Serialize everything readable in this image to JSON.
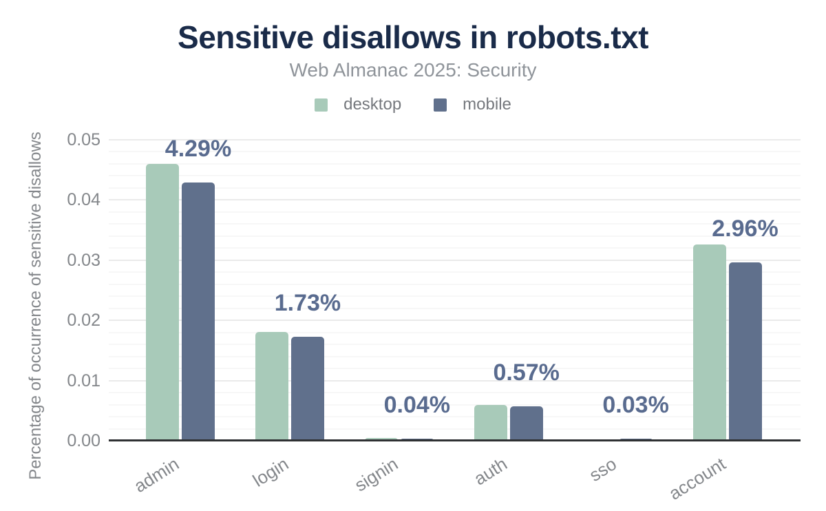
{
  "header": {
    "title": "Sensitive disallows in robots.txt",
    "subtitle": "Web Almanac 2025: Security"
  },
  "chart_data": {
    "type": "bar",
    "title": "Sensitive disallows in robots.txt",
    "subtitle": "Web Almanac 2025: Security",
    "categories": [
      "admin",
      "login",
      "signin",
      "auth",
      "sso",
      "account"
    ],
    "series": [
      {
        "name": "desktop",
        "color": "#a8cab9",
        "values": [
          0.046,
          0.0181,
          0.0005,
          0.0059,
          0.0002,
          0.0326
        ]
      },
      {
        "name": "mobile",
        "color": "#60708c",
        "values": [
          0.0429,
          0.0173,
          0.0004,
          0.0057,
          0.0003,
          0.0296
        ]
      }
    ],
    "data_labels": [
      "4.29%",
      "1.73%",
      "0.04%",
      "0.57%",
      "0.03%",
      "2.96%"
    ],
    "data_labels_refer_to": "mobile",
    "xlabel": "",
    "ylabel": "Percentage of occurrence of sensitive disallows",
    "ylim": [
      0,
      0.05
    ],
    "yticks": [
      "0.00",
      "0.01",
      "0.02",
      "0.03",
      "0.04",
      "0.05"
    ],
    "grid": {
      "major_step": 0.01,
      "minor_step": 0.002,
      "orientation": "horizontal"
    },
    "legend_position": "top"
  },
  "colors": {
    "title": "#1a2b49",
    "subtitle": "#8f949a",
    "axis_text": "#84878b",
    "data_label": "#596b8f",
    "axis_line": "#2f3133",
    "grid_major": "#eaeaea",
    "grid_minor": "#f7f7f7",
    "desktop_bar": "#a8cab9",
    "mobile_bar": "#60708c"
  }
}
